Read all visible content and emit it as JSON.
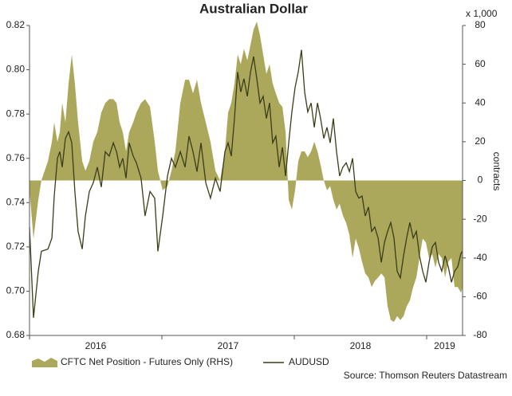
{
  "chart_data": {
    "type": "line",
    "title": "Australian Dollar",
    "y2_unit": "x 1,000",
    "y2_label": "contracts",
    "source": "Source: Thomson Reuters Datastream",
    "x": [
      2016.0,
      2016.03,
      2016.066,
      2016.09,
      2016.139,
      2016.169,
      2016.187,
      2016.211,
      2016.229,
      2016.247,
      2016.271,
      2016.295,
      2016.319,
      2016.343,
      2016.367,
      2016.398,
      2016.422,
      2016.452,
      2016.482,
      2016.512,
      2016.542,
      2016.572,
      2016.602,
      2016.633,
      2016.657,
      2016.681,
      2016.705,
      2016.729,
      2016.753,
      2016.783,
      2016.807,
      2016.843,
      2016.873,
      2016.91,
      2016.946,
      2016.97,
      2017.006,
      2017.042,
      2017.072,
      2017.102,
      2017.139,
      2017.175,
      2017.205,
      2017.235,
      2017.265,
      2017.295,
      2017.331,
      2017.367,
      2017.404,
      2017.44,
      2017.476,
      2017.5,
      2017.524,
      2017.548,
      2017.572,
      2017.596,
      2017.62,
      2017.645,
      2017.669,
      2017.693,
      2017.717,
      2017.741,
      2017.765,
      2017.789,
      2017.813,
      2017.837,
      2017.861,
      2017.886,
      2017.91,
      2017.934,
      2017.958,
      2017.982,
      2018.006,
      2018.03,
      2018.054,
      2018.078,
      2018.102,
      2018.127,
      2018.151,
      2018.175,
      2018.199,
      2018.223,
      2018.247,
      2018.271,
      2018.295,
      2018.319,
      2018.343,
      2018.367,
      2018.392,
      2018.416,
      2018.44,
      2018.464,
      2018.488,
      2018.512,
      2018.536,
      2018.56,
      2018.584,
      2018.608,
      2018.633,
      2018.657,
      2018.681,
      2018.705,
      2018.729,
      2018.753,
      2018.777,
      2018.801,
      2018.825,
      2018.849,
      2018.873,
      2018.898,
      2018.922,
      2018.946,
      2018.97,
      2018.994,
      2019.018,
      2019.042,
      2019.066,
      2019.09,
      2019.114,
      2019.139,
      2019.163,
      2019.187,
      2019.211,
      2019.235,
      2019.259,
      2019.271
    ],
    "series": [
      {
        "name": "CFTC Net Position - Futures Only (RHS)",
        "type": "area",
        "axis": "y2",
        "color": "#aba85c",
        "values": [
          -5,
          -30,
          -10,
          0,
          10,
          20,
          30,
          20,
          25,
          40,
          30,
          50,
          65,
          50,
          30,
          10,
          5,
          10,
          20,
          25,
          35,
          40,
          42,
          42,
          40,
          30,
          25,
          15,
          25,
          30,
          35,
          40,
          42,
          38,
          20,
          5,
          -5,
          -3,
          5,
          15,
          40,
          52,
          52,
          45,
          52,
          40,
          30,
          20,
          5,
          0,
          15,
          35,
          40,
          50,
          65,
          60,
          68,
          62,
          70,
          78,
          82,
          75,
          65,
          55,
          60,
          50,
          45,
          40,
          38,
          25,
          -10,
          -15,
          -5,
          10,
          15,
          15,
          12,
          15,
          20,
          15,
          8,
          0,
          -5,
          -3,
          -10,
          -15,
          -12,
          -18,
          -22,
          -28,
          -40,
          -30,
          -35,
          -42,
          -48,
          -50,
          -55,
          -52,
          -50,
          -48,
          -50,
          -65,
          -72,
          -73,
          -70,
          -72,
          -70,
          -65,
          -62,
          -55,
          -50,
          -40,
          -30,
          -32,
          -40,
          -38,
          -45,
          -38,
          -40,
          -50,
          -42,
          -40,
          -55,
          -55,
          -58,
          -55
        ]
      },
      {
        "name": "AUDUSD",
        "type": "line",
        "color": "#3b3c18",
        "values": [
          0.729,
          0.688,
          0.709,
          0.718,
          0.719,
          0.724,
          0.743,
          0.76,
          0.763,
          0.756,
          0.769,
          0.772,
          0.767,
          0.745,
          0.727,
          0.719,
          0.734,
          0.745,
          0.749,
          0.756,
          0.747,
          0.763,
          0.761,
          0.767,
          0.763,
          0.756,
          0.76,
          0.751,
          0.767,
          0.761,
          0.758,
          0.751,
          0.734,
          0.745,
          0.742,
          0.718,
          0.734,
          0.752,
          0.76,
          0.756,
          0.763,
          0.756,
          0.77,
          0.763,
          0.754,
          0.767,
          0.749,
          0.742,
          0.751,
          0.745,
          0.763,
          0.767,
          0.761,
          0.778,
          0.799,
          0.79,
          0.796,
          0.788,
          0.799,
          0.806,
          0.796,
          0.785,
          0.788,
          0.778,
          0.785,
          0.767,
          0.77,
          0.756,
          0.765,
          0.752,
          0.767,
          0.781,
          0.792,
          0.799,
          0.809,
          0.79,
          0.781,
          0.785,
          0.774,
          0.785,
          0.778,
          0.769,
          0.774,
          0.767,
          0.778,
          0.763,
          0.752,
          0.756,
          0.758,
          0.754,
          0.76,
          0.745,
          0.742,
          0.743,
          0.734,
          0.738,
          0.727,
          0.729,
          0.724,
          0.713,
          0.722,
          0.727,
          0.731,
          0.724,
          0.709,
          0.706,
          0.716,
          0.724,
          0.731,
          0.724,
          0.727,
          0.716,
          0.709,
          0.704,
          0.713,
          0.72,
          0.722,
          0.713,
          0.709,
          0.716,
          0.711,
          0.704,
          0.709,
          0.711,
          0.717,
          0.718
        ]
      }
    ],
    "xlim": [
      2016,
      2019.271
    ],
    "xticks": [
      2016,
      2017,
      2018,
      2019
    ],
    "ylim": [
      0.68,
      0.82
    ],
    "yticks": [
      {
        "value": 0.68,
        "label": "0.68"
      },
      {
        "value": 0.7,
        "label": "0.70"
      },
      0.72,
      0.74,
      0.76,
      0.78,
      {
        "value": 0.8,
        "label": "0.80"
      },
      0.82
    ],
    "y2lim": [
      -80,
      80
    ],
    "y2ticks": [
      -80,
      -60,
      -40,
      -20,
      0,
      20,
      40,
      60,
      80
    ],
    "legend": "bottom"
  }
}
